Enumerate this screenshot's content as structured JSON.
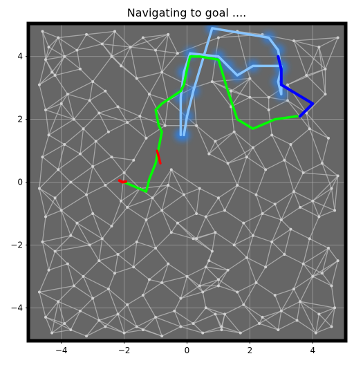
{
  "chart_data": {
    "type": "line",
    "title": "Navigating to goal ....",
    "xlim": [
      -5.05,
      5.05
    ],
    "ylim": [
      -5.05,
      5.05
    ],
    "x_ticks": [
      -4,
      -2,
      0,
      2,
      4
    ],
    "y_ticks": [
      -4,
      -2,
      0,
      2,
      4
    ],
    "x_tick_labels": [
      "−4",
      "−2",
      "0",
      "2",
      "4"
    ],
    "y_tick_labels": [
      "−4",
      "−2",
      "0",
      "2",
      "4"
    ],
    "grid": true,
    "background_color": "#666666",
    "border_color": "#000000",
    "colors": {
      "graph_edges": "#bdbdbd",
      "graph_nodes": "#d0d0d0",
      "light_blue_path": "#87c4ff",
      "dark_blue_path": "#0000ff",
      "green_path": "#00ff00",
      "red_path": "#ff0000",
      "blue_glow": "#2f7fe0"
    },
    "series": [
      {
        "color": "#87c4ff",
        "x": [
          -0.1,
          0.0,
          0.2,
          0.8,
          2.6,
          2.9,
          3.0,
          2.9,
          3.0,
          3.0,
          2.1,
          1.6,
          1.3,
          1.0,
          0.1,
          -0.1,
          -0.2,
          -0.2
        ],
        "y": [
          1.5,
          2.1,
          2.9,
          4.9,
          4.6,
          4.2,
          3.6,
          3.2,
          2.8,
          3.7,
          3.7,
          3.4,
          3.7,
          4.0,
          4.1,
          3.5,
          2.7,
          1.5
        ]
      },
      {
        "color": "#0000ff",
        "x": [
          2.9,
          3.0,
          3.0,
          3.5,
          4.0,
          3.6
        ],
        "y": [
          4.0,
          3.6,
          3.1,
          2.8,
          2.5,
          2.1
        ]
      },
      {
        "color": "#00ff00",
        "x": [
          -2.0,
          -1.3,
          -1.2,
          -1.0,
          -0.9,
          -0.8,
          -0.9,
          -1.0,
          -0.8,
          -0.2,
          -0.1,
          0.0,
          0.1,
          0.4,
          1.0,
          1.3,
          1.6,
          2.1,
          2.8,
          3.5
        ],
        "y": [
          0.0,
          -0.3,
          0.1,
          0.6,
          1.1,
          1.6,
          1.8,
          2.3,
          2.5,
          2.9,
          3.1,
          3.6,
          4.0,
          4.0,
          3.9,
          2.9,
          2.0,
          1.7,
          2.0,
          2.1
        ]
      },
      {
        "color": "#ff0000",
        "x": [
          -2.15,
          -2.05,
          -1.95
        ],
        "y": [
          0.05,
          0.0,
          0.02
        ]
      },
      {
        "color": "#ff0000",
        "x": [
          -0.95,
          -0.85
        ],
        "y": [
          1.0,
          0.6
        ]
      }
    ],
    "nodes_x": [
      -4.6,
      -4.4,
      -4.1,
      -4.5,
      -4.3,
      -3.9,
      -3.5,
      -3.2,
      -2.7,
      -2.4,
      -2.3,
      -1.8,
      -1.4,
      -1.0,
      -0.6,
      -0.3,
      -4.7,
      -4.2,
      -3.8,
      -3.4,
      -3.0,
      -2.6,
      -2.1,
      -1.6,
      -1.2,
      -0.8,
      -4.5,
      -4.0,
      -3.6,
      -3.1,
      -2.8,
      -2.2,
      -1.9,
      -1.5,
      -0.6,
      -4.4,
      -3.9,
      -3.3,
      -2.9,
      -2.5,
      -1.3,
      -0.7,
      -4.6,
      -4.1,
      -3.4,
      -3.0,
      -2.4,
      -2.0,
      -1.7,
      -0.5,
      -4.7,
      -4.2,
      -3.7,
      -3.2,
      -2.6,
      -2.1,
      -1.5,
      -1.1,
      -0.6,
      -0.1,
      -4.5,
      -4.0,
      -3.5,
      -3.0,
      -2.4,
      -1.9,
      -1.3,
      -0.8,
      -0.3,
      0.3,
      -4.6,
      -4.2,
      -3.7,
      -3.1,
      -2.7,
      -2.2,
      -1.6,
      -1.0,
      -0.5,
      0.2,
      0.8,
      -4.4,
      -3.8,
      -3.3,
      -2.8,
      -2.3,
      -1.7,
      -1.2,
      -0.6,
      0.0,
      0.6,
      -4.7,
      -4.1,
      -3.6,
      -3.0,
      -2.5,
      -1.9,
      -1.4,
      -0.8,
      -0.2,
      0.5,
      1.0,
      -4.5,
      -3.9,
      -3.4,
      -2.8,
      -2.2,
      -1.6,
      -1.0,
      -0.4,
      0.2,
      0.9,
      -4.3,
      -3.7,
      -3.2,
      -2.6,
      -2.0,
      -1.4,
      -0.8,
      -0.2,
      0.5,
      1.1,
      0.3,
      0.9,
      1.5,
      2.1,
      2.7,
      3.3,
      3.9,
      4.5,
      0.7,
      1.3,
      1.9,
      2.5,
      3.1,
      3.7,
      4.3,
      4.8,
      0.4,
      1.0,
      1.6,
      2.2,
      2.8,
      3.4,
      4.0,
      4.6,
      0.6,
      1.2,
      1.8,
      2.4,
      3.0,
      3.6,
      4.2,
      4.7,
      0.3,
      0.9,
      1.5,
      2.1,
      2.7,
      3.3,
      3.9,
      4.5,
      0.7,
      1.3,
      1.9,
      2.5,
      3.1,
      3.7,
      4.3,
      4.8,
      0.4,
      1.0,
      1.6,
      2.2,
      2.8,
      3.4,
      4.0,
      4.6,
      0.6,
      1.2,
      1.8,
      2.4,
      3.0,
      3.6,
      4.2,
      4.7,
      1.1,
      1.7,
      2.3,
      2.9,
      3.5,
      4.1,
      4.6,
      1.4,
      2.0,
      2.6,
      3.2,
      3.8,
      4.4,
      1.0,
      1.6,
      2.4,
      3.4,
      4.2,
      4.8,
      0.2,
      0.8,
      1.4,
      2.0,
      2.6,
      3.2,
      3.8,
      4.4
    ],
    "nodes_y": [
      4.8,
      4.3,
      4.6,
      3.9,
      3.5,
      4.0,
      4.2,
      4.7,
      4.4,
      4.0,
      4.8,
      4.3,
      4.6,
      4.2,
      4.7,
      4.1,
      3.1,
      3.4,
      2.8,
      3.6,
      3.2,
      2.9,
      3.7,
      3.3,
      2.8,
      3.5,
      2.3,
      2.5,
      2.0,
      2.6,
      2.2,
      2.4,
      1.9,
      2.1,
      2.6,
      1.5,
      1.2,
      1.7,
      1.3,
      1.6,
      1.4,
      1.8,
      0.8,
      0.4,
      0.9,
      0.5,
      0.8,
      0.3,
      0.7,
      0.4,
      -0.2,
      -0.5,
      0.0,
      -0.4,
      -0.1,
      -0.6,
      -0.2,
      -0.5,
      -0.1,
      -0.4,
      -1.1,
      -0.9,
      -1.3,
      -1.0,
      -1.4,
      -0.8,
      -1.2,
      -0.9,
      -1.3,
      -1.0,
      -1.9,
      -2.2,
      -1.7,
      -2.0,
      -1.8,
      -2.3,
      -1.9,
      -2.1,
      -1.6,
      -1.8,
      -2.2,
      -2.8,
      -2.6,
      -3.0,
      -2.5,
      -2.9,
      -2.7,
      -3.1,
      -2.6,
      -3.0,
      -2.7,
      -3.5,
      -3.8,
      -3.3,
      -3.7,
      -3.4,
      -3.9,
      -3.6,
      -3.2,
      -3.7,
      -3.5,
      -3.3,
      -4.3,
      -4.5,
      -4.1,
      -4.4,
      -4.2,
      -4.6,
      -4.3,
      -4.1,
      -4.5,
      -4.2,
      -4.8,
      -4.7,
      -4.9,
      -4.6,
      -4.8,
      -4.7,
      -4.9,
      -4.6,
      -4.8,
      -4.7,
      1.8,
      1.3,
      1.6,
      1.1,
      1.5,
      1.2,
      1.7,
      1.4,
      0.9,
      0.6,
      0.8,
      0.4,
      0.7,
      0.3,
      0.6,
      0.2,
      -0.2,
      -0.5,
      -0.1,
      -0.4,
      -0.7,
      -0.3,
      -0.6,
      -0.2,
      -1.1,
      -0.9,
      -1.3,
      -1.0,
      -1.2,
      -0.8,
      -1.1,
      -0.9,
      -1.8,
      -1.6,
      -2.0,
      -1.7,
      -1.9,
      -1.5,
      -1.8,
      -2.1,
      -2.5,
      -2.8,
      -2.4,
      -2.7,
      -2.3,
      -2.6,
      -2.9,
      -2.5,
      -3.3,
      -3.1,
      -3.5,
      -3.2,
      -3.6,
      -3.4,
      -3.0,
      -3.3,
      -4.0,
      -4.2,
      -3.9,
      -4.3,
      -4.1,
      -3.8,
      -4.2,
      -4.0,
      -4.6,
      -4.8,
      -4.5,
      -4.7,
      -4.4,
      -4.8,
      -4.6,
      2.4,
      2.7,
      2.3,
      2.6,
      2.2,
      2.8,
      4.6,
      4.8,
      4.7,
      4.5,
      4.3,
      4.6,
      3.0,
      3.2,
      2.9,
      3.3,
      2.7,
      3.1,
      3.4,
      3.6
    ]
  }
}
